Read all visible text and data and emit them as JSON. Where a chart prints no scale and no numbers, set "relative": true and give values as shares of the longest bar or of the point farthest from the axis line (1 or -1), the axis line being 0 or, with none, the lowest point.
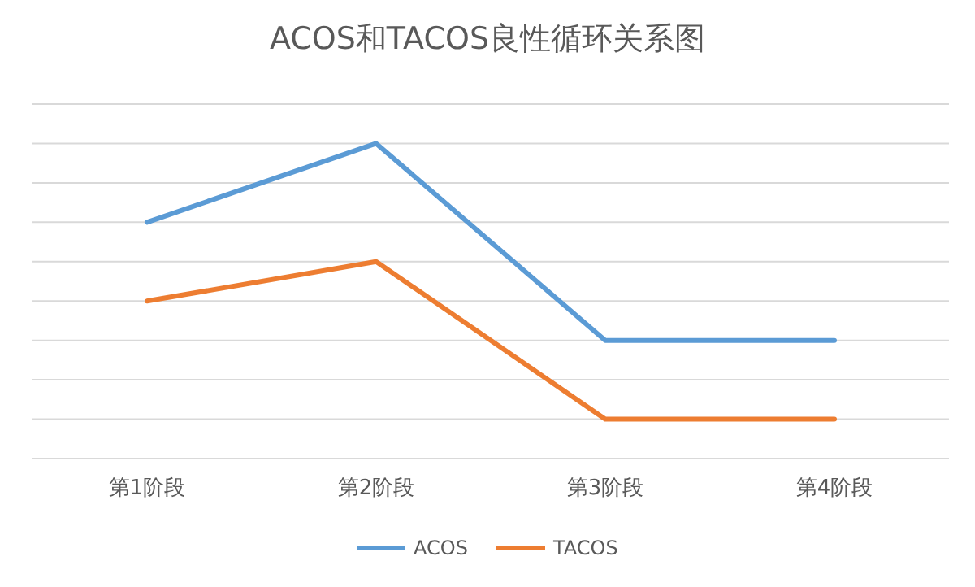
{
  "chart_data": {
    "type": "line",
    "title": "ACOS和TACOS良性循环关系图",
    "categories": [
      "第1阶段",
      "第2阶段",
      "第3阶段",
      "第4阶段"
    ],
    "relative": true,
    "grid": true,
    "legend": "bottom",
    "marker": "none",
    "line_style": "solid",
    "series": [
      {
        "name": "ACOS",
        "color": "#5b9bd5",
        "values": [
          0.75,
          1,
          0.375,
          0.375
        ]
      },
      {
        "name": "TACOS",
        "color": "#ed7d31",
        "values": [
          0.5,
          0.625,
          0.125,
          0.125
        ]
      }
    ]
  }
}
